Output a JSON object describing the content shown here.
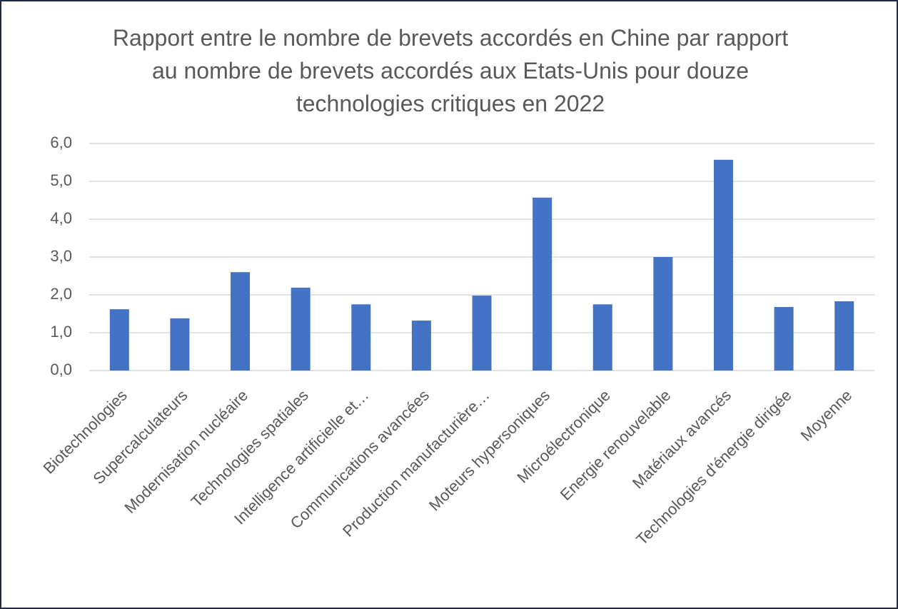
{
  "chart_data": {
    "type": "bar",
    "title": "Rapport entre le nombre de brevets accordés en Chine par rapport au nombre de brevets accordés aux Etats-Unis pour douze technologies critiques en 2022",
    "categories": [
      "Biotechnologies",
      "Supercalculateurs",
      "Modernisation nucléaire",
      "Technologies spatiales",
      "Intelligence artificielle et…",
      "Communications avancées",
      "Production manufacturière…",
      "Moteurs hypersoniques",
      "Microélectronique",
      "Energie renouvelable",
      "Matériaux avancés",
      "Technologies d'énergie dirigée",
      "Moyenne"
    ],
    "values": [
      1.62,
      1.38,
      2.6,
      2.19,
      1.75,
      1.32,
      1.98,
      4.57,
      1.75,
      3.0,
      5.57,
      1.68,
      1.83
    ],
    "color": "#4472c4",
    "ylim": [
      0,
      6
    ],
    "yticks": [
      {
        "value": 0,
        "label": "0,0"
      },
      {
        "value": 1,
        "label": "1,0"
      },
      {
        "value": 2,
        "label": "2,0"
      },
      {
        "value": 3,
        "label": "3,0"
      },
      {
        "value": 4,
        "label": "4,0"
      },
      {
        "value": 5,
        "label": "5,0"
      },
      {
        "value": 6,
        "label": "6,0"
      }
    ],
    "grid": true
  }
}
